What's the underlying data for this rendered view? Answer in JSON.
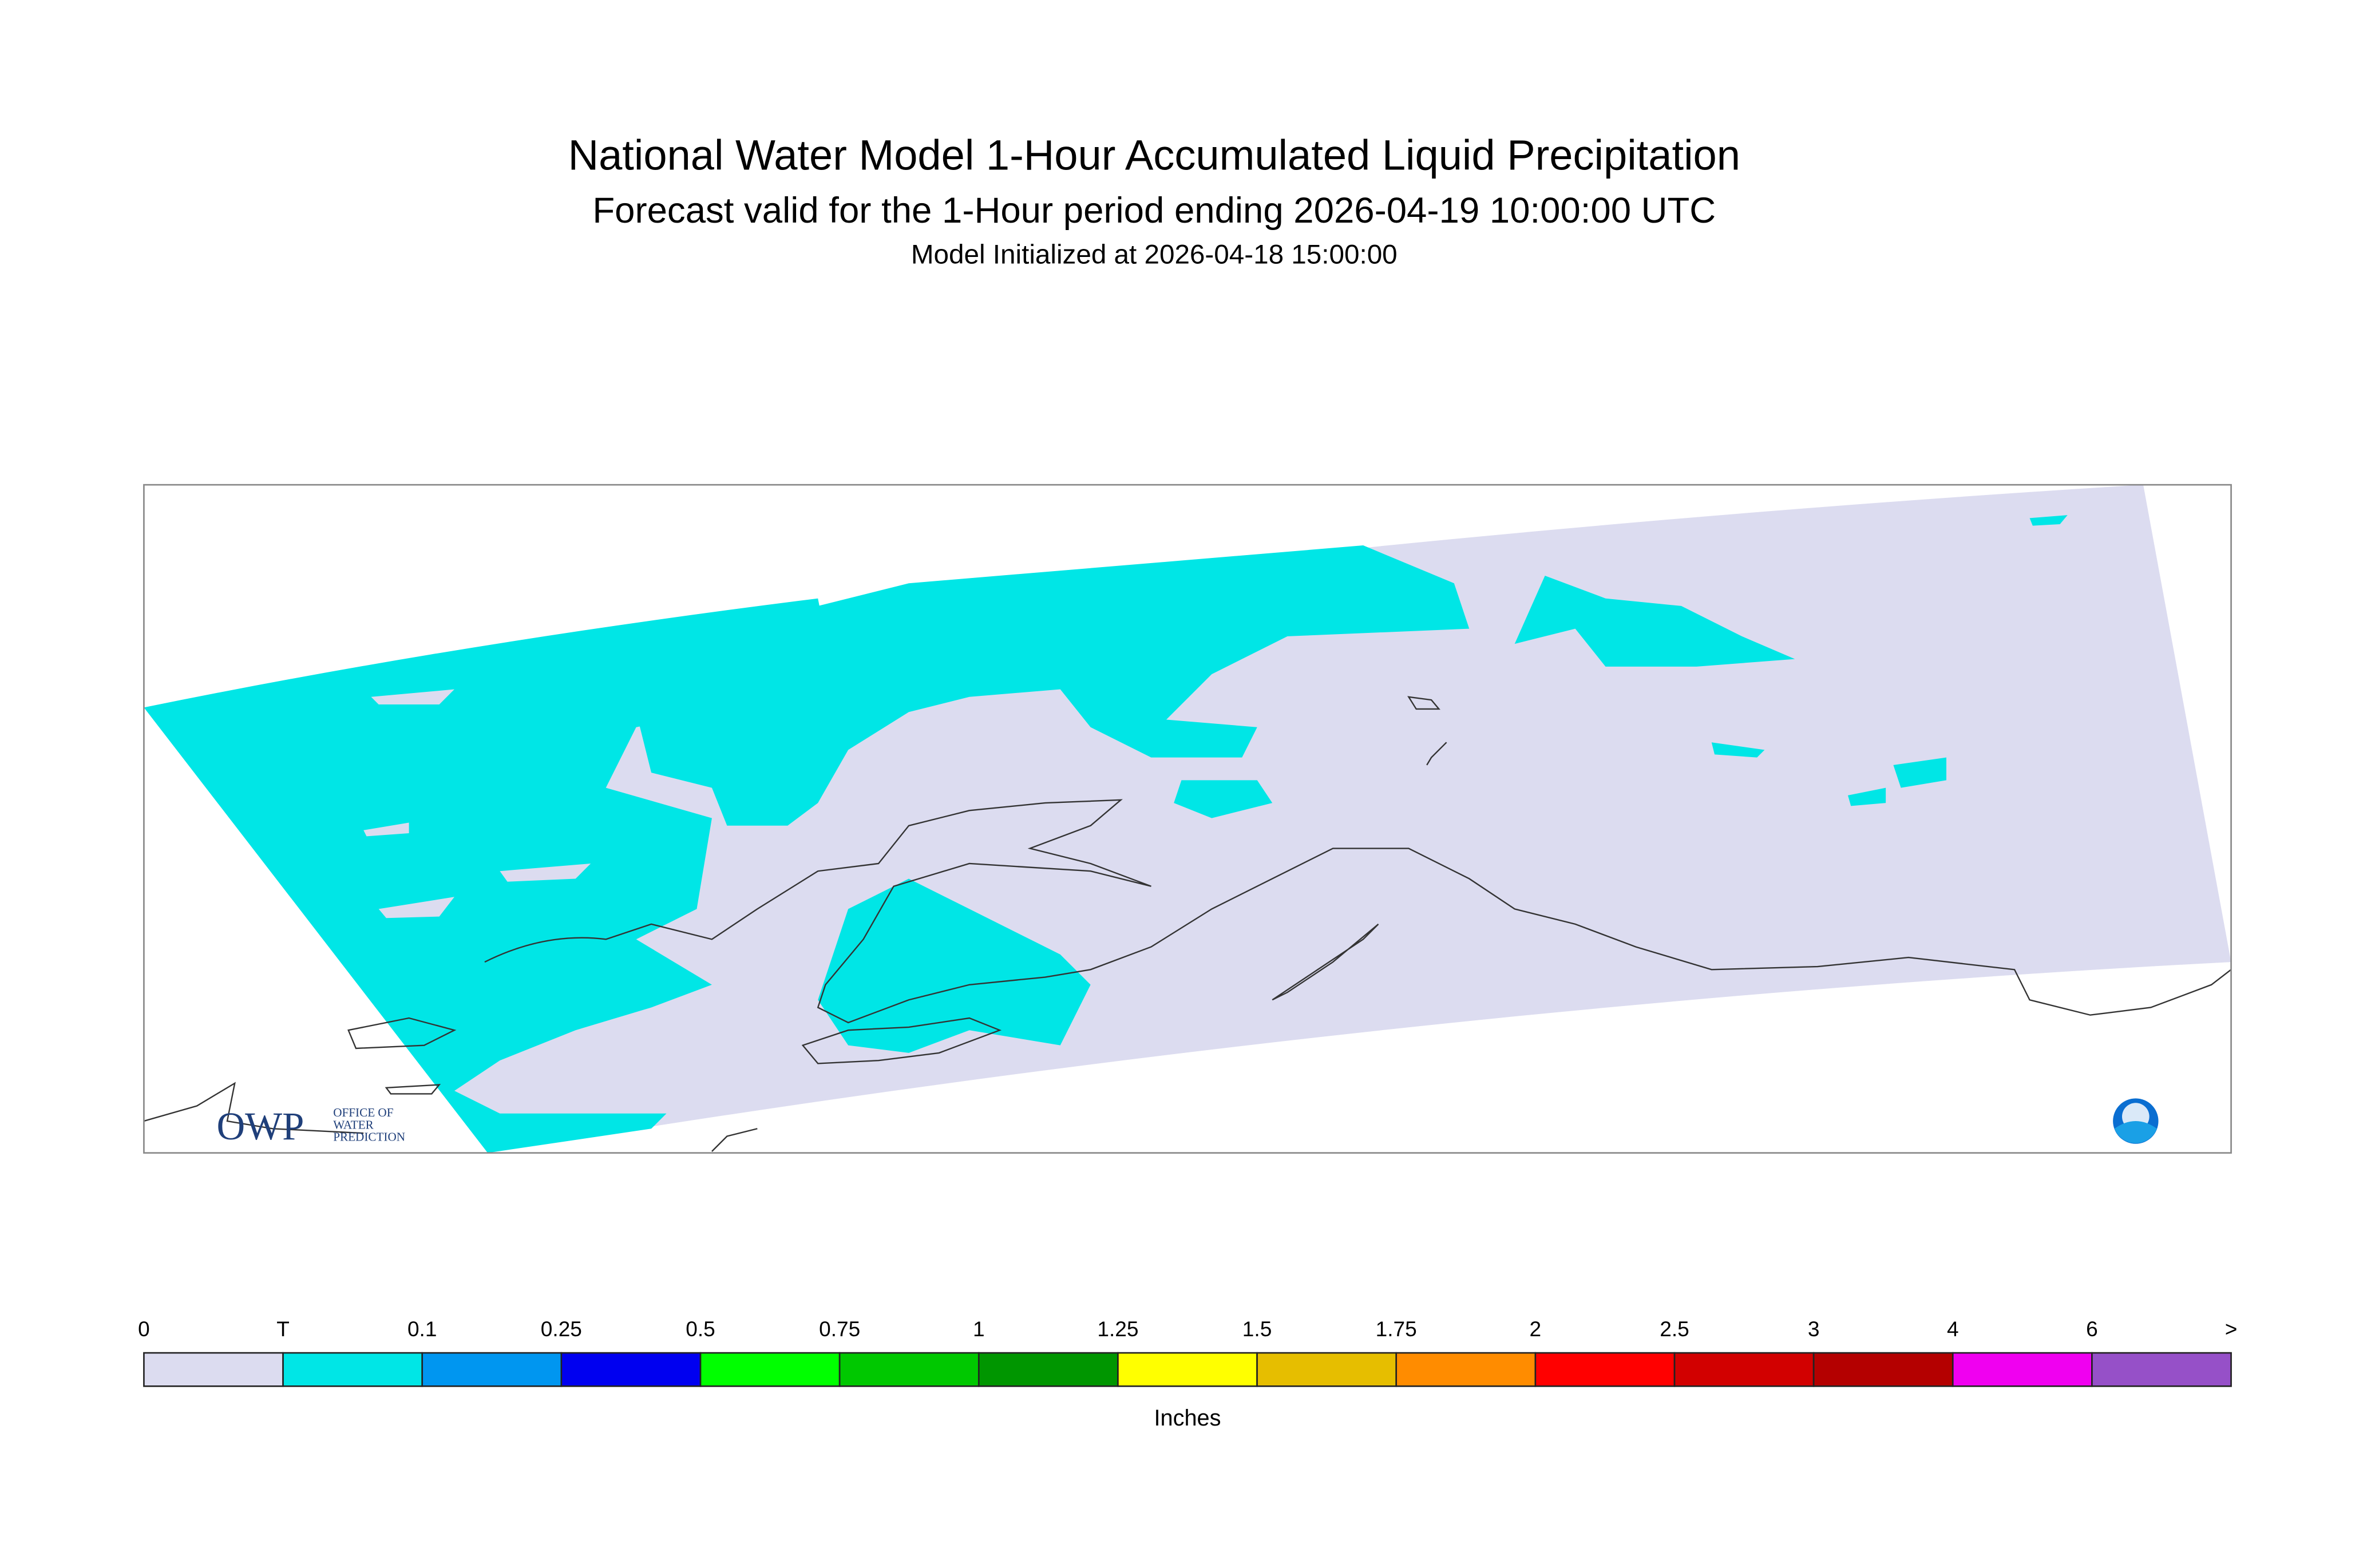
{
  "header": {
    "title": "National Water Model 1-Hour Accumulated Liquid Precipitation",
    "subtitle": "Forecast valid for the 1-Hour period ending 2026-04-19 10:00:00 UTC",
    "initialized": "Model Initialized at 2026-04-18 15:00:00"
  },
  "logo": {
    "abbr": "OWP",
    "line1": "OFFICE OF",
    "line2": "WATER",
    "line3": "PREDICTION"
  },
  "legend": {
    "labels": [
      "0",
      "T",
      "0.1",
      "0.25",
      "0.5",
      "0.75",
      "1",
      "1.25",
      "1.5",
      "1.75",
      "2",
      "2.5",
      "3",
      "4",
      "6",
      ">"
    ],
    "colors": [
      "#dcdcf0",
      "#00e6e6",
      "#0096f0",
      "#0000f0",
      "#00ff00",
      "#00c800",
      "#009600",
      "#ffff00",
      "#e6be00",
      "#ff8c00",
      "#ff0000",
      "#d20000",
      "#b40000",
      "#f000f0",
      "#9650c8"
    ],
    "unit": "Inches"
  }
}
